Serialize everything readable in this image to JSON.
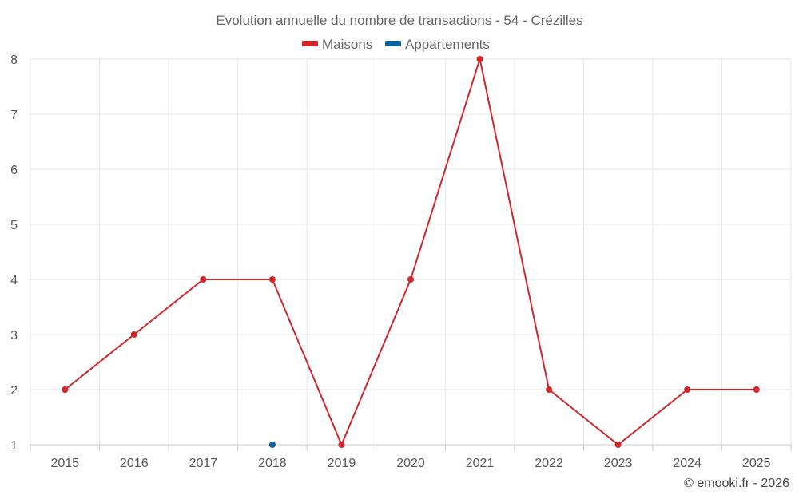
{
  "chart_data": {
    "type": "line",
    "title": "Evolution annuelle du nombre de transactions - 54 - Crézilles",
    "x": [
      "2015",
      "2016",
      "2017",
      "2018",
      "2019",
      "2020",
      "2021",
      "2022",
      "2023",
      "2024",
      "2025"
    ],
    "series": [
      {
        "name": "Maisons",
        "color": "#d3262b",
        "values": [
          2,
          3,
          4,
          4,
          1,
          4,
          8,
          2,
          1,
          2,
          2
        ]
      },
      {
        "name": "Appartements",
        "color": "#0a64a0",
        "values": [
          null,
          null,
          null,
          1,
          null,
          null,
          null,
          null,
          null,
          null,
          null
        ]
      }
    ],
    "ylim": [
      1,
      8
    ],
    "yticks": [
      "1",
      "2",
      "3",
      "4",
      "5",
      "6",
      "7",
      "8"
    ],
    "grid": true,
    "legend_position": "top-center"
  },
  "credit": "© emooki.fr - 2026"
}
